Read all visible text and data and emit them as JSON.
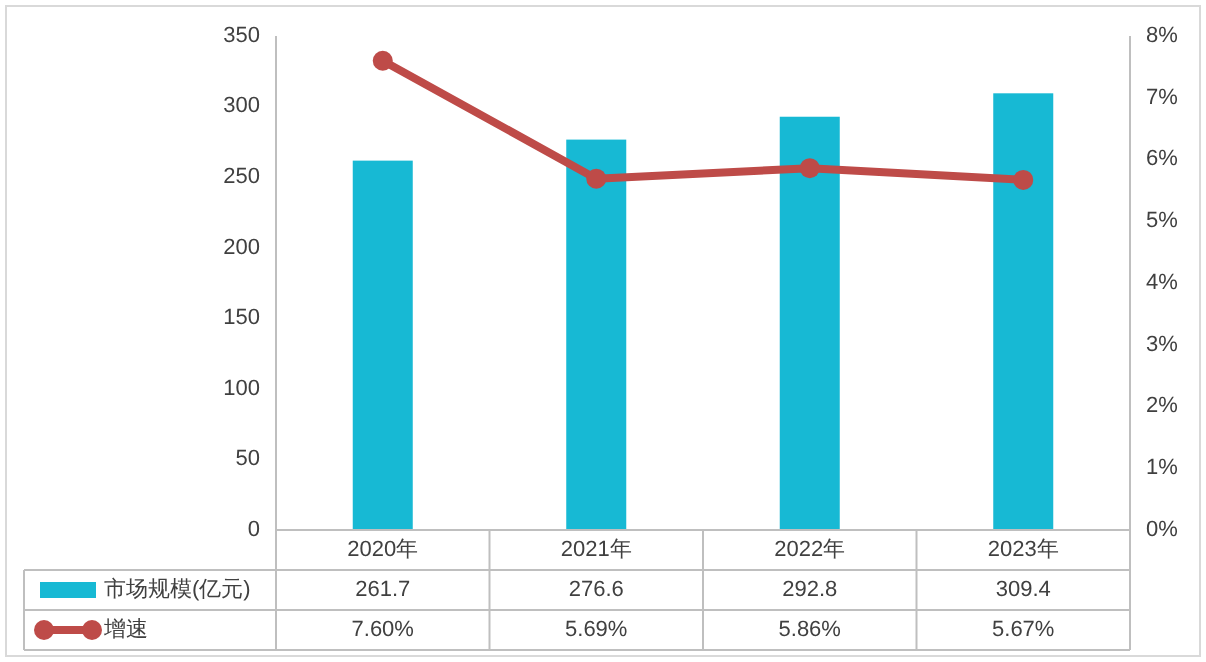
{
  "chart_data": {
    "type": "bar",
    "categories": [
      "2020年",
      "2021年",
      "2022年",
      "2023年"
    ],
    "series": [
      {
        "name": "市场规模(亿元)",
        "color": "#17b9d4",
        "values": [
          261.7,
          276.6,
          292.8,
          309.4
        ],
        "value_labels": [
          "261.7",
          "276.6",
          "292.8",
          "309.4"
        ]
      },
      {
        "name": "增速",
        "type": "line",
        "axis": "y2",
        "color": "#be4b48",
        "values": [
          7.6,
          5.69,
          5.86,
          5.67
        ],
        "value_labels": [
          "7.60%",
          "5.69%",
          "5.86%",
          "5.67%"
        ]
      }
    ],
    "ylim": [
      0,
      350
    ],
    "yticks": [
      0,
      50,
      100,
      150,
      200,
      250,
      300,
      350
    ],
    "y2lim": [
      0,
      8
    ],
    "y2ticks": [
      {
        "value": 0,
        "label": "0%"
      },
      {
        "value": 1,
        "label": "1%"
      },
      {
        "value": 2,
        "label": "2%"
      },
      {
        "value": 3,
        "label": "3%"
      },
      {
        "value": 4,
        "label": "4%"
      },
      {
        "value": 5,
        "label": "5%"
      },
      {
        "value": 6,
        "label": "6%"
      },
      {
        "value": 7,
        "label": "7%"
      },
      {
        "value": 8,
        "label": "8%"
      }
    ],
    "marker": "circle",
    "line_style": "solid",
    "grid": false,
    "legend": "bottom"
  }
}
